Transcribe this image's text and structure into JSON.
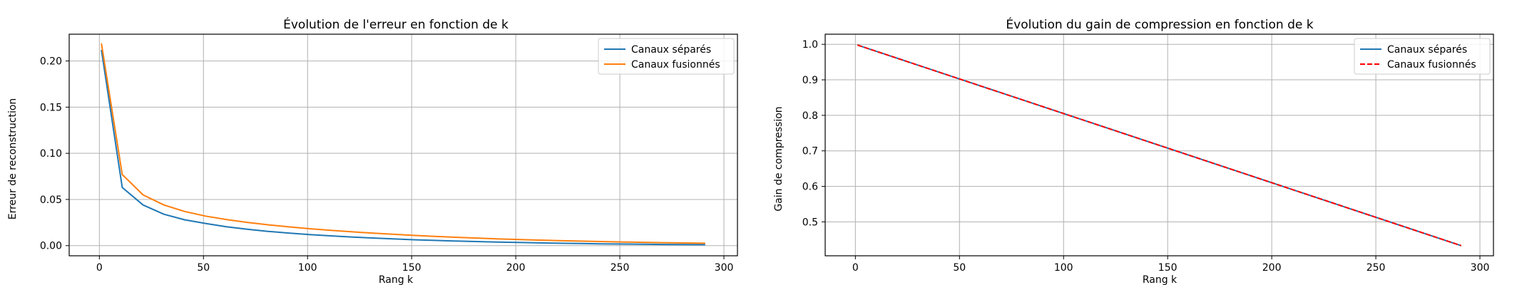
{
  "chart_data": [
    {
      "type": "line",
      "title": "Évolution de l'erreur en fonction de k",
      "xlabel": "Rang k",
      "ylabel": "Erreur de reconstruction",
      "xlim": [
        -14.5,
        306.5
      ],
      "ylim": [
        -0.011,
        0.229
      ],
      "xticks": [
        0,
        50,
        100,
        150,
        200,
        250,
        300
      ],
      "yticks": [
        0.0,
        0.05,
        0.1,
        0.15,
        0.2
      ],
      "ytick_labels": [
        "0.00",
        "0.05",
        "0.10",
        "0.15",
        "0.20"
      ],
      "grid": true,
      "legend": "upper right",
      "x": [
        1,
        11,
        21,
        31,
        41,
        51,
        61,
        71,
        81,
        91,
        101,
        111,
        121,
        131,
        141,
        151,
        161,
        171,
        181,
        191,
        201,
        211,
        221,
        231,
        241,
        251,
        261,
        271,
        281,
        291
      ],
      "series": [
        {
          "name": "Canaux séparés",
          "color": "#1f77b4",
          "dash": "solid",
          "values": [
            0.212,
            0.063,
            0.044,
            0.034,
            0.028,
            0.024,
            0.0205,
            0.0178,
            0.0155,
            0.0136,
            0.012,
            0.0106,
            0.0094,
            0.0083,
            0.0073,
            0.0064,
            0.0057,
            0.005,
            0.0044,
            0.0039,
            0.0034,
            0.003,
            0.0026,
            0.0023,
            0.002,
            0.0017,
            0.0015,
            0.0013,
            0.0011,
            0.001
          ]
        },
        {
          "name": "Canaux fusionnés",
          "color": "#ff7f0e",
          "dash": "solid",
          "values": [
            0.219,
            0.077,
            0.055,
            0.044,
            0.037,
            0.032,
            0.0283,
            0.0252,
            0.0226,
            0.0203,
            0.0183,
            0.0166,
            0.015,
            0.0136,
            0.0123,
            0.0111,
            0.01,
            0.0091,
            0.0082,
            0.0074,
            0.0067,
            0.006,
            0.0054,
            0.0049,
            0.0044,
            0.004,
            0.0036,
            0.0032,
            0.0029,
            0.0026
          ]
        }
      ]
    },
    {
      "type": "line",
      "title": "Évolution du gain de compression en fonction de k",
      "xlabel": "Rang k",
      "ylabel": "Gain de compression",
      "xlim": [
        -14.5,
        306.5
      ],
      "ylim": [
        0.4045,
        1.0285
      ],
      "xticks": [
        0,
        50,
        100,
        150,
        200,
        250,
        300
      ],
      "yticks": [
        0.5,
        0.6,
        0.7,
        0.8,
        0.9,
        1.0
      ],
      "ytick_labels": [
        "0.5",
        "0.6",
        "0.7",
        "0.8",
        "0.9",
        "1.0"
      ],
      "grid": true,
      "legend": "upper right",
      "x": [
        1,
        291
      ],
      "series": [
        {
          "name": "Canaux séparés",
          "color": "#1f77b4",
          "dash": "solid",
          "values": [
            0.998,
            0.433
          ]
        },
        {
          "name": "Canaux fusionnés",
          "color": "#ff0000",
          "dash": "dashed",
          "values": [
            0.998,
            0.433
          ]
        }
      ]
    }
  ]
}
